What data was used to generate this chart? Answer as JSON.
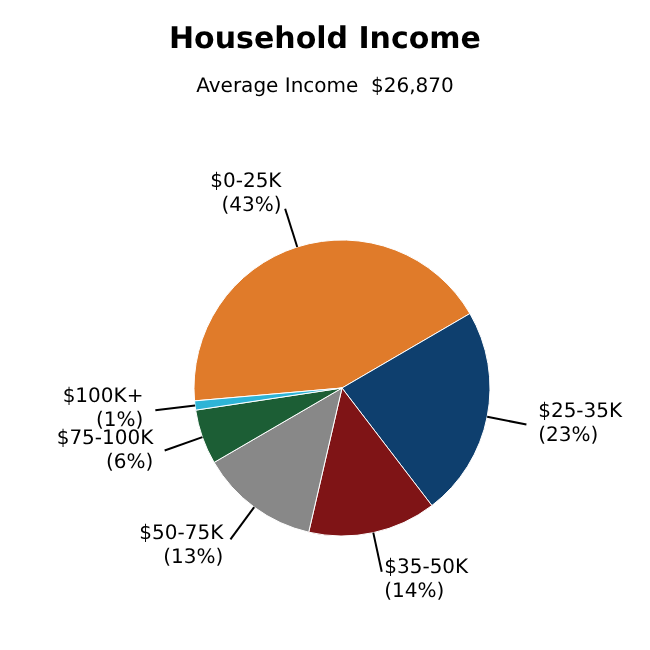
{
  "chart_data": {
    "type": "pie",
    "title": "Household Income",
    "subtitle": "Average Income  $26,870",
    "categories": [
      "$0-25K",
      "$25-35K",
      "$35-50K",
      "$50-75K",
      "$75-100K",
      "$100K+"
    ],
    "values": [
      43,
      23,
      14,
      13,
      6,
      1
    ],
    "value_labels": [
      "(43%)",
      "(23%)",
      "(14%)",
      "(13%)",
      "(6%)",
      "(1%)"
    ],
    "colors": [
      "#e07b2a",
      "#0e3f6e",
      "#7f1416",
      "#888888",
      "#1c5e35",
      "#2eb4d6"
    ],
    "legend": false
  }
}
